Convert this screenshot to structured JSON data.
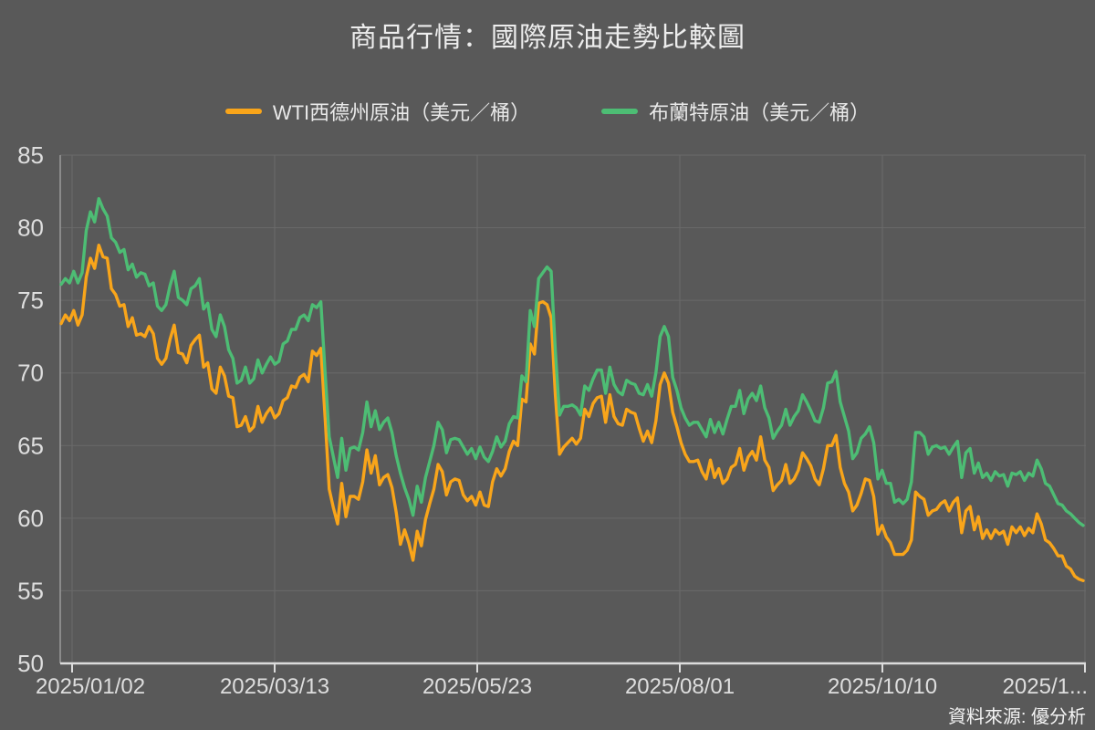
{
  "title": "商品行情：國際原油走勢比較圖",
  "source_note": "資料來源: 優分析",
  "colors": {
    "background": "#595959",
    "wti": "#F9A51A",
    "brent": "#4DBD74",
    "grid": "#6A6A6A",
    "axis": "#DCDCDC",
    "axis_y": "#9A9A9A",
    "text": "#DEDEDE"
  },
  "chart_data": {
    "type": "line",
    "title": "商品行情：國際原油走勢比較圖",
    "xlabel": "",
    "ylabel": "",
    "ylim": [
      50,
      85
    ],
    "yticks": [
      85,
      80,
      75,
      70,
      65,
      60,
      55,
      50
    ],
    "xticks": [
      "2025/01/02",
      "2025/03/13",
      "2025/05/23",
      "2025/08/01",
      "2025/10/10",
      "2025/1..."
    ],
    "grid": true,
    "legend_position": "top",
    "x_unit": "trading-day, 2025/01/02 - 2025/12/19",
    "series": [
      {
        "name": "WTI西德州原油（美元／桶）",
        "color": "#F9A51A",
        "values": [
          73.4,
          74.0,
          73.6,
          74.3,
          73.3,
          74.0,
          76.6,
          77.9,
          77.2,
          78.8,
          78.0,
          77.9,
          75.8,
          75.4,
          74.6,
          74.7,
          73.2,
          73.8,
          72.6,
          72.7,
          72.5,
          73.2,
          72.7,
          71.0,
          70.6,
          71.0,
          72.3,
          73.3,
          71.4,
          71.3,
          70.7,
          71.9,
          72.3,
          72.6,
          70.4,
          70.7,
          68.9,
          68.6,
          70.4,
          69.8,
          68.4,
          68.3,
          66.3,
          66.4,
          67.0,
          66.0,
          66.3,
          67.7,
          66.6,
          67.2,
          67.6,
          66.9,
          67.2,
          68.1,
          68.3,
          69.1,
          69.0,
          69.7,
          69.9,
          69.4,
          71.5,
          71.2,
          71.7,
          67.0,
          62.0,
          60.7,
          59.6,
          62.4,
          60.1,
          61.5,
          61.5,
          61.3,
          62.5,
          64.7,
          63.1,
          64.3,
          62.3,
          62.8,
          63.0,
          62.1,
          60.4,
          58.2,
          59.2,
          58.3,
          57.1,
          59.1,
          58.1,
          59.9,
          61.0,
          62.0,
          63.7,
          63.2,
          61.6,
          62.5,
          62.7,
          62.6,
          61.6,
          61.2,
          61.5,
          60.9,
          61.8,
          60.9,
          60.8,
          62.5,
          63.4,
          62.9,
          63.4,
          64.6,
          65.3,
          65.0,
          68.2,
          68.0,
          72.0,
          71.3,
          74.8,
          74.9,
          74.7,
          73.8,
          68.5,
          64.4,
          64.9,
          65.2,
          65.5,
          65.1,
          65.5,
          67.5,
          67.0,
          67.9,
          68.3,
          68.4,
          66.6,
          68.5,
          67.0,
          66.5,
          66.4,
          67.5,
          67.3,
          67.2,
          66.2,
          65.3,
          66.0,
          65.2,
          66.7,
          69.2,
          70.0,
          69.3,
          67.3,
          66.3,
          65.2,
          64.4,
          63.9,
          63.9,
          64.0,
          63.2,
          62.7,
          64.0,
          62.8,
          63.4,
          62.4,
          62.7,
          63.5,
          63.7,
          64.8,
          63.3,
          64.2,
          64.6,
          64.0,
          65.6,
          64.0,
          63.5,
          61.9,
          62.3,
          62.6,
          63.7,
          62.4,
          62.7,
          63.3,
          64.5,
          64.1,
          63.6,
          62.7,
          62.3,
          63.4,
          65.0,
          65.0,
          65.7,
          63.5,
          62.4,
          61.8,
          60.5,
          60.9,
          61.7,
          62.7,
          62.6,
          61.5,
          58.9,
          59.5,
          58.7,
          58.3,
          57.5,
          57.5,
          57.5,
          57.8,
          58.5,
          61.8,
          61.5,
          61.3,
          60.2,
          60.5,
          60.6,
          61.0,
          61.2,
          60.5,
          61.1,
          61.4,
          59.0,
          60.5,
          60.8,
          59.2,
          60.1,
          58.6,
          59.2,
          58.6,
          59.2,
          58.9,
          59.1,
          58.2,
          59.4,
          59.0,
          59.4,
          58.8,
          59.3,
          59.0,
          60.3,
          59.6,
          58.5,
          58.3,
          57.9,
          57.4,
          57.4,
          56.7,
          56.5,
          56.0,
          55.8,
          55.7
        ]
      },
      {
        "name": "布蘭特原油（美元／桶）",
        "color": "#4DBD74",
        "values": [
          76.1,
          76.5,
          76.2,
          77.0,
          76.2,
          76.9,
          79.8,
          81.1,
          80.4,
          82.0,
          81.3,
          80.8,
          79.3,
          79.0,
          78.3,
          78.5,
          77.1,
          77.5,
          76.6,
          76.9,
          76.8,
          76.0,
          76.2,
          74.6,
          74.3,
          74.7,
          76.0,
          77.0,
          75.2,
          75.0,
          74.7,
          75.8,
          76.0,
          76.5,
          74.4,
          74.8,
          73.0,
          72.5,
          74.0,
          73.2,
          71.6,
          71.0,
          69.3,
          69.5,
          70.4,
          69.3,
          69.6,
          70.9,
          70.0,
          70.6,
          71.1,
          70.6,
          70.8,
          72.0,
          72.2,
          73.0,
          73.0,
          73.8,
          74.0,
          73.6,
          74.7,
          74.5,
          74.9,
          70.1,
          65.6,
          64.2,
          62.8,
          65.5,
          63.3,
          64.8,
          64.9,
          64.7,
          65.9,
          68.0,
          66.3,
          67.4,
          66.1,
          66.6,
          66.9,
          65.9,
          64.3,
          63.1,
          62.1,
          61.3,
          60.2,
          62.2,
          61.1,
          62.8,
          63.9,
          65.0,
          66.6,
          66.1,
          64.5,
          65.4,
          65.5,
          65.4,
          64.9,
          64.4,
          64.8,
          64.1,
          64.9,
          64.2,
          63.9,
          64.6,
          65.6,
          64.9,
          65.3,
          66.5,
          67.0,
          66.9,
          69.8,
          69.4,
          74.3,
          73.2,
          76.5,
          76.9,
          77.3,
          77.0,
          71.5,
          67.1,
          67.7,
          67.7,
          67.8,
          67.6,
          67.1,
          69.1,
          68.8,
          69.6,
          70.2,
          70.2,
          68.6,
          70.4,
          69.2,
          68.7,
          68.5,
          69.5,
          69.3,
          69.2,
          68.6,
          68.5,
          69.2,
          68.4,
          70.0,
          72.5,
          73.2,
          72.5,
          69.7,
          68.8,
          67.6,
          66.9,
          66.4,
          66.6,
          66.6,
          66.1,
          65.6,
          66.8,
          65.9,
          66.6,
          65.8,
          66.8,
          67.7,
          67.7,
          68.8,
          67.2,
          68.2,
          68.6,
          68.1,
          69.1,
          67.6,
          66.9,
          65.5,
          66.0,
          66.4,
          67.5,
          66.4,
          67.0,
          67.4,
          68.5,
          68.0,
          67.4,
          66.7,
          66.6,
          67.6,
          69.3,
          69.4,
          70.1,
          68.0,
          67.0,
          66.0,
          64.1,
          64.5,
          65.5,
          65.8,
          66.3,
          65.2,
          62.7,
          63.3,
          62.4,
          62.4,
          61.1,
          61.3,
          61.0,
          61.3,
          62.5,
          65.9,
          65.9,
          65.6,
          64.4,
          64.9,
          65.0,
          64.8,
          64.9,
          64.4,
          64.9,
          65.3,
          62.8,
          64.5,
          64.8,
          63.1,
          63.8,
          62.8,
          63.1,
          62.6,
          63.2,
          62.9,
          63.0,
          62.2,
          63.1,
          63.0,
          63.2,
          62.6,
          63.1,
          62.9,
          64.0,
          63.4,
          62.4,
          62.2,
          61.6,
          61.0,
          60.9,
          60.5,
          60.3,
          60.0,
          59.7,
          59.5
        ]
      }
    ]
  }
}
